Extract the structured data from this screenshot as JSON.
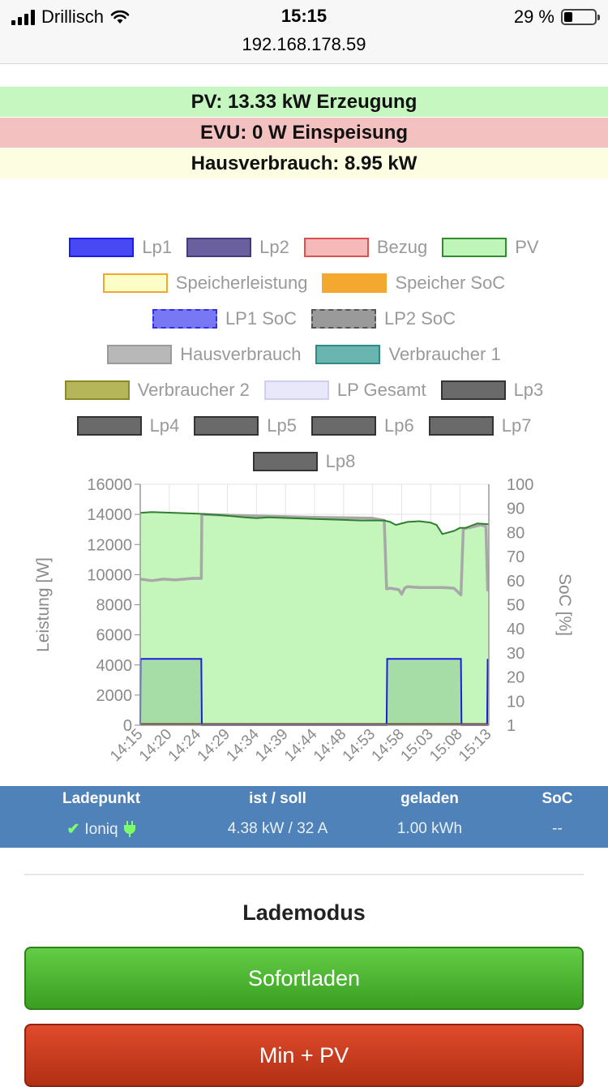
{
  "status_bar": {
    "carrier": "Drillisch",
    "time": "15:15",
    "url": "192.168.178.59",
    "battery": "29 %",
    "battery_level": 0.29
  },
  "banners": {
    "pv": "PV: 13.33 kW Erzeugung",
    "evu": "EVU: 0 W Einspeisung",
    "haus": "Hausverbrauch: 8.95 kW"
  },
  "legend": [
    {
      "label": "Lp1",
      "fill": "#4848f5",
      "border": "#1d1de0",
      "dashed": false
    },
    {
      "label": "Lp2",
      "fill": "#6a5f9f",
      "border": "#443a7f",
      "dashed": false
    },
    {
      "label": "Bezug",
      "fill": "#f5b9b9",
      "border": "#e05050",
      "dashed": false
    },
    {
      "label": "PV",
      "fill": "#bff5b8",
      "border": "#2f8f2f",
      "dashed": false
    },
    {
      "label": "Speicherleistung",
      "fill": "#fdfdc8",
      "border": "#f0a830",
      "dashed": false
    },
    {
      "label": "Speicher SoC",
      "fill": "#f5a830",
      "border": "#f5a830",
      "dashed": true
    },
    {
      "label": "LP1 SoC",
      "fill": "#7878f5",
      "border": "#3030e0",
      "dashed": true
    },
    {
      "label": "LP2 SoC",
      "fill": "#9a9a9a",
      "border": "#555555",
      "dashed": true
    },
    {
      "label": "Hausverbrauch",
      "fill": "#b8b8b8",
      "border": "#9a9a9a",
      "dashed": false
    },
    {
      "label": "Verbraucher 1",
      "fill": "#6ab5b0",
      "border": "#2d8a85",
      "dashed": false
    },
    {
      "label": "Verbraucher 2",
      "fill": "#b5b55a",
      "border": "#8a8a2a",
      "dashed": false
    },
    {
      "label": "LP Gesamt",
      "fill": "#e8e8fa",
      "border": "#d0d0ee",
      "dashed": false
    },
    {
      "label": "Lp3",
      "fill": "#6a6a6a",
      "border": "#333333",
      "dashed": false
    },
    {
      "label": "Lp4",
      "fill": "#6a6a6a",
      "border": "#333333",
      "dashed": false
    },
    {
      "label": "Lp5",
      "fill": "#6a6a6a",
      "border": "#333333",
      "dashed": false
    },
    {
      "label": "Lp6",
      "fill": "#6a6a6a",
      "border": "#333333",
      "dashed": false
    },
    {
      "label": "Lp7",
      "fill": "#6a6a6a",
      "border": "#333333",
      "dashed": false
    },
    {
      "label": "Lp8",
      "fill": "#6a6a6a",
      "border": "#333333",
      "dashed": false
    }
  ],
  "chart_data": {
    "type": "area",
    "ylabel": "Leistung [W]",
    "y2label": "SoC [%]",
    "ylim": [
      0,
      16000
    ],
    "yticks": [
      "16000",
      "14000",
      "12000",
      "10000",
      "8000",
      "6000",
      "4000",
      "2000",
      "0"
    ],
    "y2ticks": [
      "100",
      "90",
      "80",
      "70",
      "60",
      "50",
      "40",
      "30",
      "20",
      "10",
      "1"
    ],
    "x_tick_labels": [
      "14:15",
      "14:20",
      "14:24",
      "14:29",
      "14:34",
      "14:39",
      "14:44",
      "14:48",
      "14:53",
      "14:58",
      "15:03",
      "15:08",
      "15:13"
    ],
    "grid": true,
    "series": [
      {
        "name": "PV",
        "color": "#2f7f2f",
        "fill": "#c4f5bb",
        "x": [
          0,
          2,
          6,
          10,
          14,
          18,
          20,
          22,
          26,
          30,
          34,
          38,
          42,
          43,
          44,
          46,
          48,
          50,
          51,
          52,
          54,
          55,
          56,
          57,
          58,
          60
        ],
        "values": [
          14100,
          14150,
          14100,
          14050,
          13950,
          13800,
          13750,
          13800,
          13750,
          13700,
          13650,
          13600,
          13600,
          13500,
          13300,
          13500,
          13550,
          13450,
          13300,
          12700,
          12900,
          13100,
          13100,
          13250,
          13400,
          13350
        ]
      },
      {
        "name": "Hausverbrauch",
        "color": "#a8a8a8",
        "x": [
          0,
          2,
          4,
          6,
          9,
          10.5,
          10.6,
          15,
          20,
          25,
          30,
          40,
          42,
          42.4,
          43,
          44.5,
          45,
          45.5,
          46,
          48,
          50,
          52,
          54,
          55.2,
          55.6,
          57,
          58.6,
          59.5,
          59.8
        ],
        "values": [
          9700,
          9600,
          9700,
          9650,
          9750,
          9750,
          14000,
          13950,
          13900,
          13850,
          13800,
          13750,
          13600,
          9050,
          9100,
          9000,
          8700,
          9100,
          9200,
          9150,
          9150,
          9150,
          9100,
          8650,
          13050,
          13150,
          13300,
          13200,
          8900
        ]
      },
      {
        "name": "Lp1",
        "color": "#1d1de0",
        "fill": "#a6dca6",
        "x": [
          0,
          0.05,
          10.5,
          10.6,
          42.4,
          42.5,
          55.2,
          55.3,
          59.7,
          59.8
        ],
        "values": [
          0,
          4400,
          4400,
          0,
          0,
          4400,
          4400,
          0,
          0,
          4400
        ]
      }
    ]
  },
  "ladepunkt_table": {
    "headers": [
      "Ladepunkt",
      "ist / soll",
      "geladen",
      "SoC"
    ],
    "rows": [
      {
        "name": "Ioniq",
        "ist_soll": "4.38 kW / 32 A",
        "geladen": "1.00 kWh",
        "soc": "--"
      }
    ]
  },
  "lademodus": {
    "title": "Lademodus",
    "sofort_label": "Sofortladen",
    "minpv_label": "Min + PV"
  }
}
